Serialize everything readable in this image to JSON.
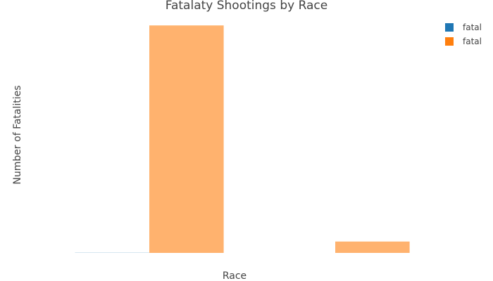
{
  "chart_data": {
    "type": "bar",
    "title": "Fatalaty Shootings by Race",
    "xlabel": "Race",
    "ylabel": "Number of Fatalities",
    "categories": [
      "",
      ""
    ],
    "series": [
      {
        "name": "fatal",
        "color": "#1f77b4",
        "values": [
          0.1,
          0
        ]
      },
      {
        "name": "fatal",
        "color": "#ff7f0e",
        "values": [
          100,
          5
        ]
      }
    ],
    "ylim": [
      0,
      105
    ],
    "grid": false,
    "tick_labels_visible": false,
    "opacity": 0.6,
    "legend_placement": "top-right"
  }
}
